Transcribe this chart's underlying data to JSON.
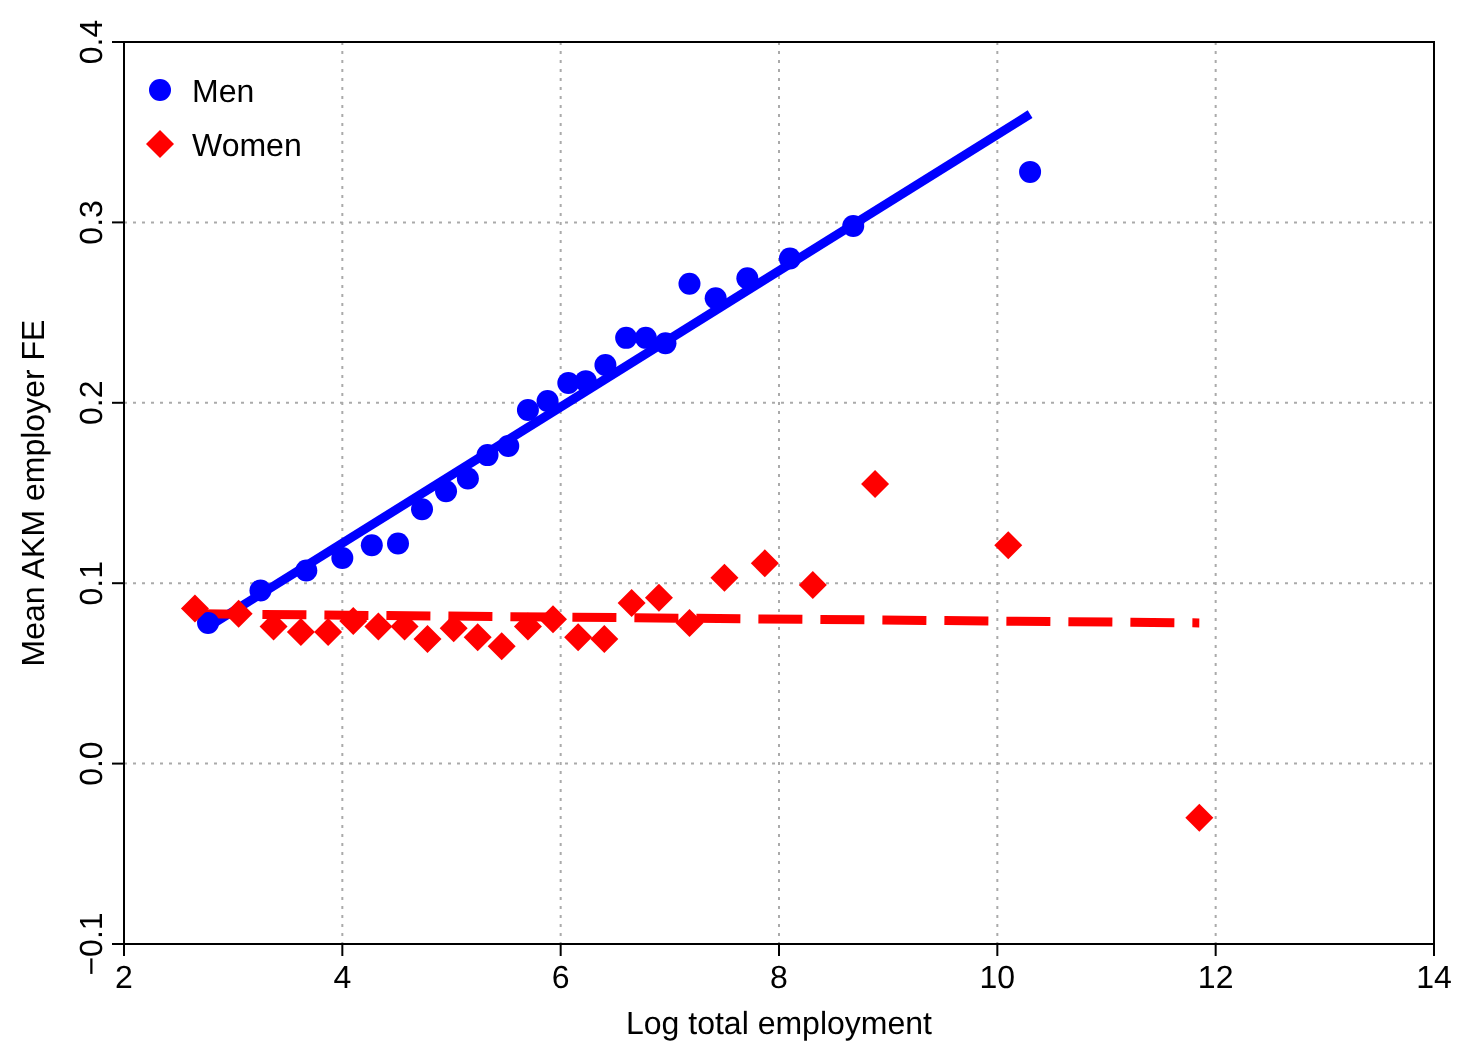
{
  "chart_data": {
    "type": "scatter",
    "xlabel": "Log total employment",
    "ylabel": "Mean AKM employer FE",
    "xlim": [
      2,
      14
    ],
    "ylim": [
      -0.1,
      0.4
    ],
    "xticks": [
      2,
      4,
      6,
      8,
      10,
      12,
      14
    ],
    "yticks": [
      {
        "value": -0.1,
        "label": "−0.1"
      },
      {
        "value": 0,
        "label": "0.0"
      },
      {
        "value": 0.1,
        "label": "0.1"
      },
      {
        "value": 0.2,
        "label": "0.2"
      },
      {
        "value": 0.3,
        "label": "0.3"
      },
      {
        "value": 0.4,
        "label": "0.4"
      }
    ],
    "grid": true,
    "legend": "top left",
    "series": [
      {
        "name": "Men",
        "marker": "circle",
        "color": "#0000ff",
        "x": [
          2.77,
          3.25,
          3.67,
          4.0,
          4.27,
          4.51,
          4.73,
          4.95,
          5.15,
          5.33,
          5.52,
          5.7,
          5.88,
          6.07,
          6.23,
          6.41,
          6.6,
          6.78,
          6.96,
          7.18,
          7.42,
          7.71,
          8.1,
          8.68,
          10.3
        ],
        "values": [
          0.078,
          0.096,
          0.107,
          0.114,
          0.121,
          0.122,
          0.141,
          0.151,
          0.158,
          0.171,
          0.176,
          0.196,
          0.201,
          0.211,
          0.212,
          0.221,
          0.236,
          0.236,
          0.233,
          0.266,
          0.258,
          0.269,
          0.28,
          0.298,
          0.328
        ]
      },
      {
        "name": "Women",
        "marker": "diamond",
        "color": "#ff0000",
        "x": [
          2.65,
          3.05,
          3.37,
          3.62,
          3.87,
          4.1,
          4.33,
          4.57,
          4.78,
          5.02,
          5.24,
          5.46,
          5.7,
          5.93,
          6.16,
          6.4,
          6.65,
          6.9,
          7.18,
          7.5,
          7.87,
          8.31,
          8.88,
          10.1,
          11.85
        ],
        "values": [
          0.086,
          0.083,
          0.076,
          0.073,
          0.073,
          0.079,
          0.076,
          0.076,
          0.069,
          0.075,
          0.07,
          0.065,
          0.076,
          0.08,
          0.07,
          0.069,
          0.089,
          0.092,
          0.078,
          0.103,
          0.111,
          0.099,
          0.155,
          0.121,
          -0.03
        ]
      },
      {
        "type": "line",
        "line_style": "solid",
        "color": "#0000ff",
        "x": [
          2.75,
          10.3
        ],
        "values": [
          0.075,
          0.36
        ]
      },
      {
        "type": "line",
        "line_style": "dashed",
        "color": "#ff0000",
        "x": [
          2.7,
          11.85
        ],
        "values": [
          0.083,
          0.078
        ]
      }
    ]
  }
}
